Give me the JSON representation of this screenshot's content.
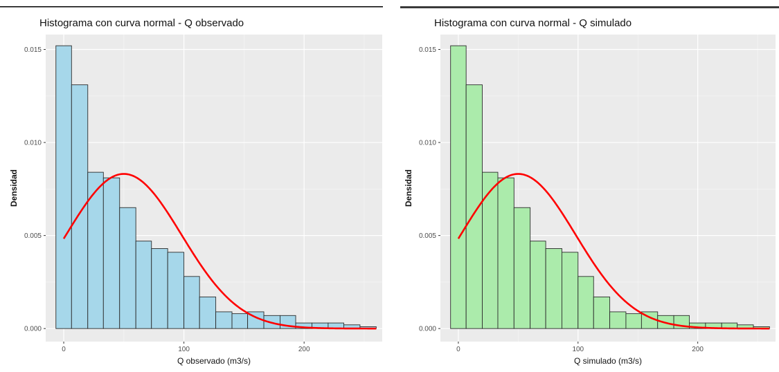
{
  "chart_data": [
    {
      "type": "bar",
      "title": "Histograma con curva normal - Q observado",
      "xlabel": "Q observado (m3/s)",
      "ylabel": "Densidad",
      "bar_color": "#a6d7ea",
      "bar_stroke": "#2b2b2b",
      "curve_color": "#ff0000",
      "panel_background": "#ebebeb",
      "header_bar_color": "#000000",
      "xlim": [
        -15,
        265
      ],
      "ylim": [
        -0.0007,
        0.0158
      ],
      "xticks": [
        "0",
        "100",
        "200"
      ],
      "xtick_values": [
        0,
        100,
        200
      ],
      "yticks": [
        "0.000",
        "0.005",
        "0.010",
        "0.015"
      ],
      "ytick_values": [
        0.0,
        0.005,
        0.01,
        0.015
      ],
      "grid": true,
      "bins": [
        {
          "x0": -6.5,
          "x1": 6.5,
          "value": 0.0152
        },
        {
          "x0": 6.5,
          "x1": 20,
          "value": 0.0131
        },
        {
          "x0": 20,
          "x1": 33,
          "value": 0.0084
        },
        {
          "x0": 33,
          "x1": 46.5,
          "value": 0.0081
        },
        {
          "x0": 46.5,
          "x1": 60,
          "value": 0.0065
        },
        {
          "x0": 60,
          "x1": 73,
          "value": 0.0047
        },
        {
          "x0": 73,
          "x1": 86.5,
          "value": 0.0043
        },
        {
          "x0": 86.5,
          "x1": 100,
          "value": 0.0041
        },
        {
          "x0": 100,
          "x1": 113,
          "value": 0.0028
        },
        {
          "x0": 113,
          "x1": 126.5,
          "value": 0.0017
        },
        {
          "x0": 126.5,
          "x1": 140,
          "value": 0.0009
        },
        {
          "x0": 140,
          "x1": 153,
          "value": 0.0008
        },
        {
          "x0": 153,
          "x1": 166.5,
          "value": 0.0009
        },
        {
          "x0": 166.5,
          "x1": 180,
          "value": 0.0007
        },
        {
          "x0": 180,
          "x1": 193,
          "value": 0.0007
        },
        {
          "x0": 193,
          "x1": 206.5,
          "value": 0.0003
        },
        {
          "x0": 206.5,
          "x1": 220,
          "value": 0.0003
        },
        {
          "x0": 220,
          "x1": 233,
          "value": 0.0003
        },
        {
          "x0": 233,
          "x1": 246.5,
          "value": 0.0002
        },
        {
          "x0": 246.5,
          "x1": 260,
          "value": 0.0001
        }
      ],
      "normal_curve": {
        "mean": 50,
        "sd": 48,
        "x_range": [
          0,
          260
        ]
      }
    },
    {
      "type": "bar",
      "title": "Histograma con curva normal - Q simulado",
      "xlabel": "Q simulado (m3/s)",
      "ylabel": "Densidad",
      "bar_color": "#abebab",
      "bar_stroke": "#2b2b2b",
      "curve_color": "#ff0000",
      "panel_background": "#ebebeb",
      "header_bar_color": "#3a3a3a",
      "xlim": [
        -15,
        265
      ],
      "ylim": [
        -0.0007,
        0.0158
      ],
      "xticks": [
        "0",
        "100",
        "200"
      ],
      "xtick_values": [
        0,
        100,
        200
      ],
      "yticks": [
        "0.000",
        "0.005",
        "0.010",
        "0.015"
      ],
      "ytick_values": [
        0.0,
        0.005,
        0.01,
        0.015
      ],
      "grid": true,
      "bins": [
        {
          "x0": -6.5,
          "x1": 6.5,
          "value": 0.0152
        },
        {
          "x0": 6.5,
          "x1": 20,
          "value": 0.0131
        },
        {
          "x0": 20,
          "x1": 33,
          "value": 0.0084
        },
        {
          "x0": 33,
          "x1": 46.5,
          "value": 0.0081
        },
        {
          "x0": 46.5,
          "x1": 60,
          "value": 0.0065
        },
        {
          "x0": 60,
          "x1": 73,
          "value": 0.0047
        },
        {
          "x0": 73,
          "x1": 86.5,
          "value": 0.0043
        },
        {
          "x0": 86.5,
          "x1": 100,
          "value": 0.0041
        },
        {
          "x0": 100,
          "x1": 113,
          "value": 0.0028
        },
        {
          "x0": 113,
          "x1": 126.5,
          "value": 0.0017
        },
        {
          "x0": 126.5,
          "x1": 140,
          "value": 0.0009
        },
        {
          "x0": 140,
          "x1": 153,
          "value": 0.0008
        },
        {
          "x0": 153,
          "x1": 166.5,
          "value": 0.0009
        },
        {
          "x0": 166.5,
          "x1": 180,
          "value": 0.0007
        },
        {
          "x0": 180,
          "x1": 193,
          "value": 0.0007
        },
        {
          "x0": 193,
          "x1": 206.5,
          "value": 0.0003
        },
        {
          "x0": 206.5,
          "x1": 220,
          "value": 0.0003
        },
        {
          "x0": 220,
          "x1": 233,
          "value": 0.0003
        },
        {
          "x0": 233,
          "x1": 246.5,
          "value": 0.0002
        },
        {
          "x0": 246.5,
          "x1": 260,
          "value": 0.0001
        }
      ],
      "normal_curve": {
        "mean": 50,
        "sd": 48,
        "x_range": [
          0,
          260
        ]
      }
    }
  ]
}
